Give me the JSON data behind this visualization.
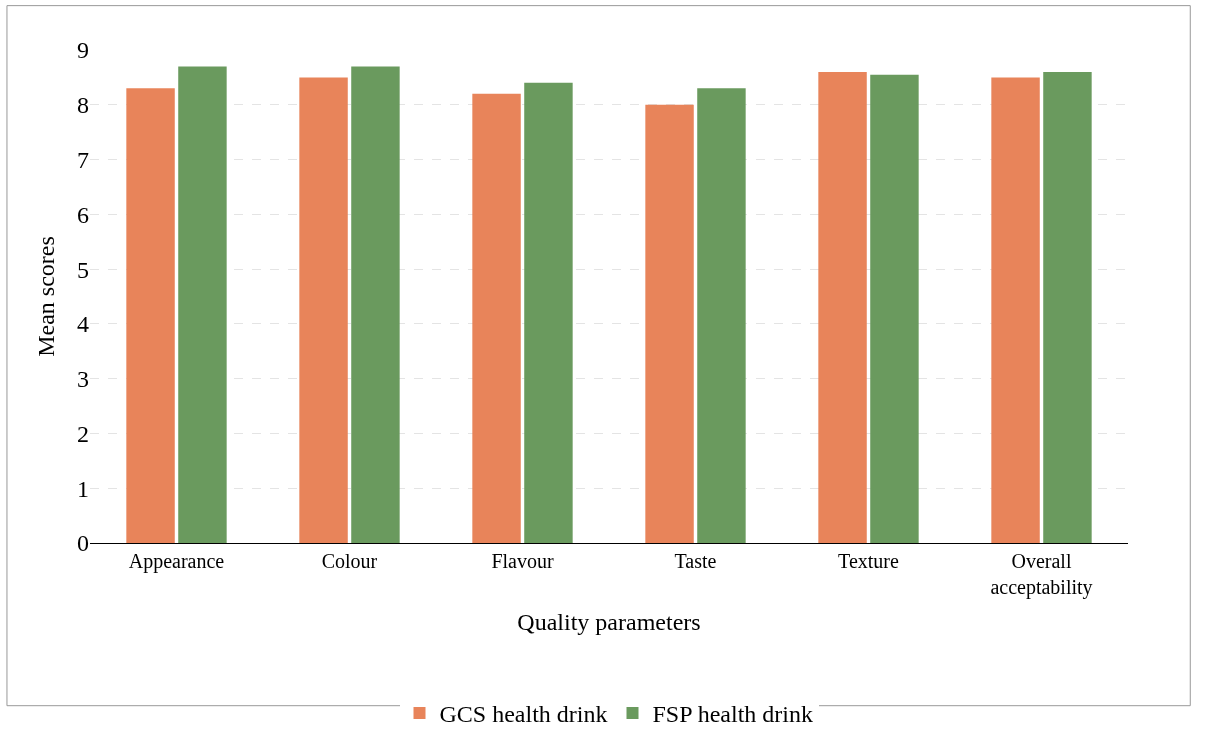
{
  "chart_data": {
    "type": "bar",
    "xlabel": "Quality parameters",
    "ylabel": "Mean scores",
    "categories": [
      "Appearance",
      "Colour",
      "Flavour",
      "Taste",
      "Texture",
      "Overall acceptability"
    ],
    "series": [
      {
        "name": "GCS health drink",
        "color": "#e8845a",
        "values": [
          8.3,
          8.5,
          8.2,
          8.0,
          8.6,
          8.5
        ]
      },
      {
        "name": "FSP health drink",
        "color": "#6a9a5e",
        "values": [
          8.7,
          8.7,
          8.4,
          8.3,
          8.55,
          8.6
        ]
      }
    ],
    "ylim": [
      0,
      9
    ],
    "yticks": [
      0,
      1,
      2,
      3,
      4,
      5,
      6,
      7,
      8,
      9
    ],
    "grid": "y",
    "legend": "bottom"
  }
}
